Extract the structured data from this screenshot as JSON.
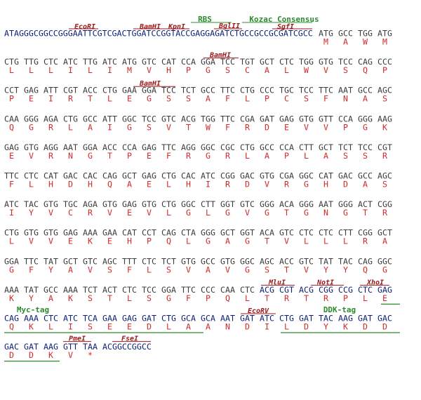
{
  "lines": [
    {
      "prefix": "ATAGGGCGGCCGGGAATTCGTCGACTGGATCCGGTACCGAGGAGATCTGCCGCCGCGATCGCC",
      "codons": [
        "ATG",
        "GCC",
        "TGG",
        "ATG"
      ],
      "aa": [
        "M",
        "A",
        "W",
        "M"
      ],
      "annotations": [
        "EcoRI",
        "BamHI",
        "KpnI",
        "BglII",
        "SgfI",
        "RBS",
        "Kozac Consensus"
      ]
    },
    {
      "codons": [
        "CTG",
        "TTG",
        "CTC",
        "ATC",
        "TTG",
        "ATC",
        "ATG",
        "GTC",
        "CAT",
        "CCA",
        "GGA",
        "TCC",
        "TGT",
        "GCT",
        "CTC",
        "TGG",
        "GTG",
        "TCC",
        "CAG",
        "CCC"
      ],
      "aa": [
        "L",
        "L",
        "L",
        "I",
        "L",
        "I",
        "M",
        "V",
        "H",
        "P",
        "G",
        "S",
        "C",
        "A",
        "L",
        "W",
        "V",
        "S",
        "Q",
        "P"
      ],
      "annotations": [
        "BamHI"
      ]
    },
    {
      "codons": [
        "CCT",
        "GAG",
        "ATT",
        "CGT",
        "ACC",
        "CTG",
        "GAA",
        "GGA",
        "TCC",
        "TCT",
        "GCC",
        "TTC",
        "CTG",
        "CCC",
        "TGC",
        "TCC",
        "TTC",
        "AAT",
        "GCC",
        "AGC"
      ],
      "aa": [
        "P",
        "E",
        "I",
        "R",
        "T",
        "L",
        "E",
        "G",
        "S",
        "S",
        "A",
        "F",
        "L",
        "P",
        "C",
        "S",
        "F",
        "N",
        "A",
        "S"
      ],
      "annotations": [
        "BamHI"
      ]
    },
    {
      "codons": [
        "CAA",
        "GGG",
        "AGA",
        "CTG",
        "GCC",
        "ATT",
        "GGC",
        "TCC",
        "GTC",
        "ACG",
        "TGG",
        "TTC",
        "CGA",
        "GAT",
        "GAG",
        "GTG",
        "GTT",
        "CCA",
        "GGG",
        "AAG"
      ],
      "aa": [
        "Q",
        "G",
        "R",
        "L",
        "A",
        "I",
        "G",
        "S",
        "V",
        "T",
        "W",
        "F",
        "R",
        "D",
        "E",
        "V",
        "V",
        "P",
        "G",
        "K"
      ],
      "annotations": []
    },
    {
      "codons": [
        "GAG",
        "GTG",
        "AGG",
        "AAT",
        "GGA",
        "ACC",
        "CCA",
        "GAG",
        "TTC",
        "AGG",
        "GGC",
        "CGC",
        "CTG",
        "GCC",
        "CCA",
        "CTT",
        "GCT",
        "TCT",
        "TCC",
        "CGT"
      ],
      "aa": [
        "E",
        "V",
        "R",
        "N",
        "G",
        "T",
        "P",
        "E",
        "F",
        "R",
        "G",
        "R",
        "L",
        "A",
        "P",
        "L",
        "A",
        "S",
        "S",
        "R"
      ],
      "annotations": []
    },
    {
      "codons": [
        "TTC",
        "CTC",
        "CAT",
        "GAC",
        "CAC",
        "CAG",
        "GCT",
        "GAG",
        "CTG",
        "CAC",
        "ATC",
        "CGG",
        "GAC",
        "GTG",
        "CGA",
        "GGC",
        "CAT",
        "GAC",
        "GCC",
        "AGC"
      ],
      "aa": [
        "F",
        "L",
        "H",
        "D",
        "H",
        "Q",
        "A",
        "E",
        "L",
        "H",
        "I",
        "R",
        "D",
        "V",
        "R",
        "G",
        "H",
        "D",
        "A",
        "S"
      ],
      "annotations": []
    },
    {
      "codons": [
        "ATC",
        "TAC",
        "GTG",
        "TGC",
        "AGA",
        "GTG",
        "GAG",
        "GTG",
        "CTG",
        "GGC",
        "CTT",
        "GGT",
        "GTC",
        "GGG",
        "ACA",
        "GGG",
        "AAT",
        "GGG",
        "ACT",
        "CGG"
      ],
      "aa": [
        "I",
        "Y",
        "V",
        "C",
        "R",
        "V",
        "E",
        "V",
        "L",
        "G",
        "L",
        "G",
        "V",
        "G",
        "T",
        "G",
        "N",
        "G",
        "T",
        "R"
      ],
      "annotations": []
    },
    {
      "codons": [
        "CTG",
        "GTG",
        "GTG",
        "GAG",
        "AAA",
        "GAA",
        "CAT",
        "CCT",
        "CAG",
        "CTA",
        "GGG",
        "GCT",
        "GGT",
        "ACA",
        "GTC",
        "CTC",
        "CTC",
        "CTT",
        "CGG",
        "GCT"
      ],
      "aa": [
        "L",
        "V",
        "V",
        "E",
        "K",
        "E",
        "H",
        "P",
        "Q",
        "L",
        "G",
        "A",
        "G",
        "T",
        "V",
        "L",
        "L",
        "L",
        "R",
        "A"
      ],
      "annotations": []
    },
    {
      "codons": [
        "GGA",
        "TTC",
        "TAT",
        "GCT",
        "GTC",
        "AGC",
        "TTT",
        "CTC",
        "TCT",
        "GTG",
        "GCC",
        "GTG",
        "GGC",
        "AGC",
        "ACC",
        "GTC",
        "TAT",
        "TAC",
        "CAG",
        "GGC"
      ],
      "aa": [
        "G",
        "F",
        "Y",
        "A",
        "V",
        "S",
        "F",
        "L",
        "S",
        "V",
        "A",
        "V",
        "G",
        "S",
        "T",
        "V",
        "Y",
        "Y",
        "Q",
        "G"
      ],
      "annotations": []
    },
    {
      "codons": [
        "AAA",
        "TAT",
        "GCC",
        "AAA",
        "TCT",
        "ACT",
        "CTC",
        "TCC",
        "GGA",
        "TTC",
        "CCC",
        "CAA",
        "CTC",
        "ACG",
        "CGT",
        "ACG",
        "CGG",
        "CCG",
        "CTC",
        "GAG"
      ],
      "aa": [
        "K",
        "Y",
        "A",
        "K",
        "S",
        "T",
        "L",
        "S",
        "G",
        "F",
        "P",
        "Q",
        "L",
        "T",
        "R",
        "T",
        "R",
        "P",
        "L",
        "E"
      ],
      "annotations": [
        "MluI",
        "NotI",
        "XhoI"
      ]
    },
    {
      "codons": [
        "CAG",
        "AAA",
        "CTC",
        "ATC",
        "TCA",
        "GAA",
        "GAG",
        "GAT",
        "CTG",
        "GCA",
        "GCA",
        "AAT",
        "GAT",
        "ATC",
        "CTG",
        "GAT",
        "TAC",
        "AAG",
        "GAT",
        "GAC"
      ],
      "aa": [
        "Q",
        "K",
        "L",
        "I",
        "S",
        "E",
        "E",
        "D",
        "L",
        "A",
        "A",
        "N",
        "D",
        "I",
        "L",
        "D",
        "Y",
        "K",
        "D",
        "D"
      ],
      "annotations": [
        "Myc-tag",
        "EcoRV",
        "DDK-tag"
      ]
    },
    {
      "codons": [
        "GAC",
        "GAT",
        "AAG",
        "GTT",
        "TAA"
      ],
      "suffix": "ACGGCCGGCC",
      "aa": [
        "D",
        "D",
        "K",
        "V",
        "*"
      ],
      "annotations": [
        "PmeI",
        "FseI"
      ]
    }
  ]
}
